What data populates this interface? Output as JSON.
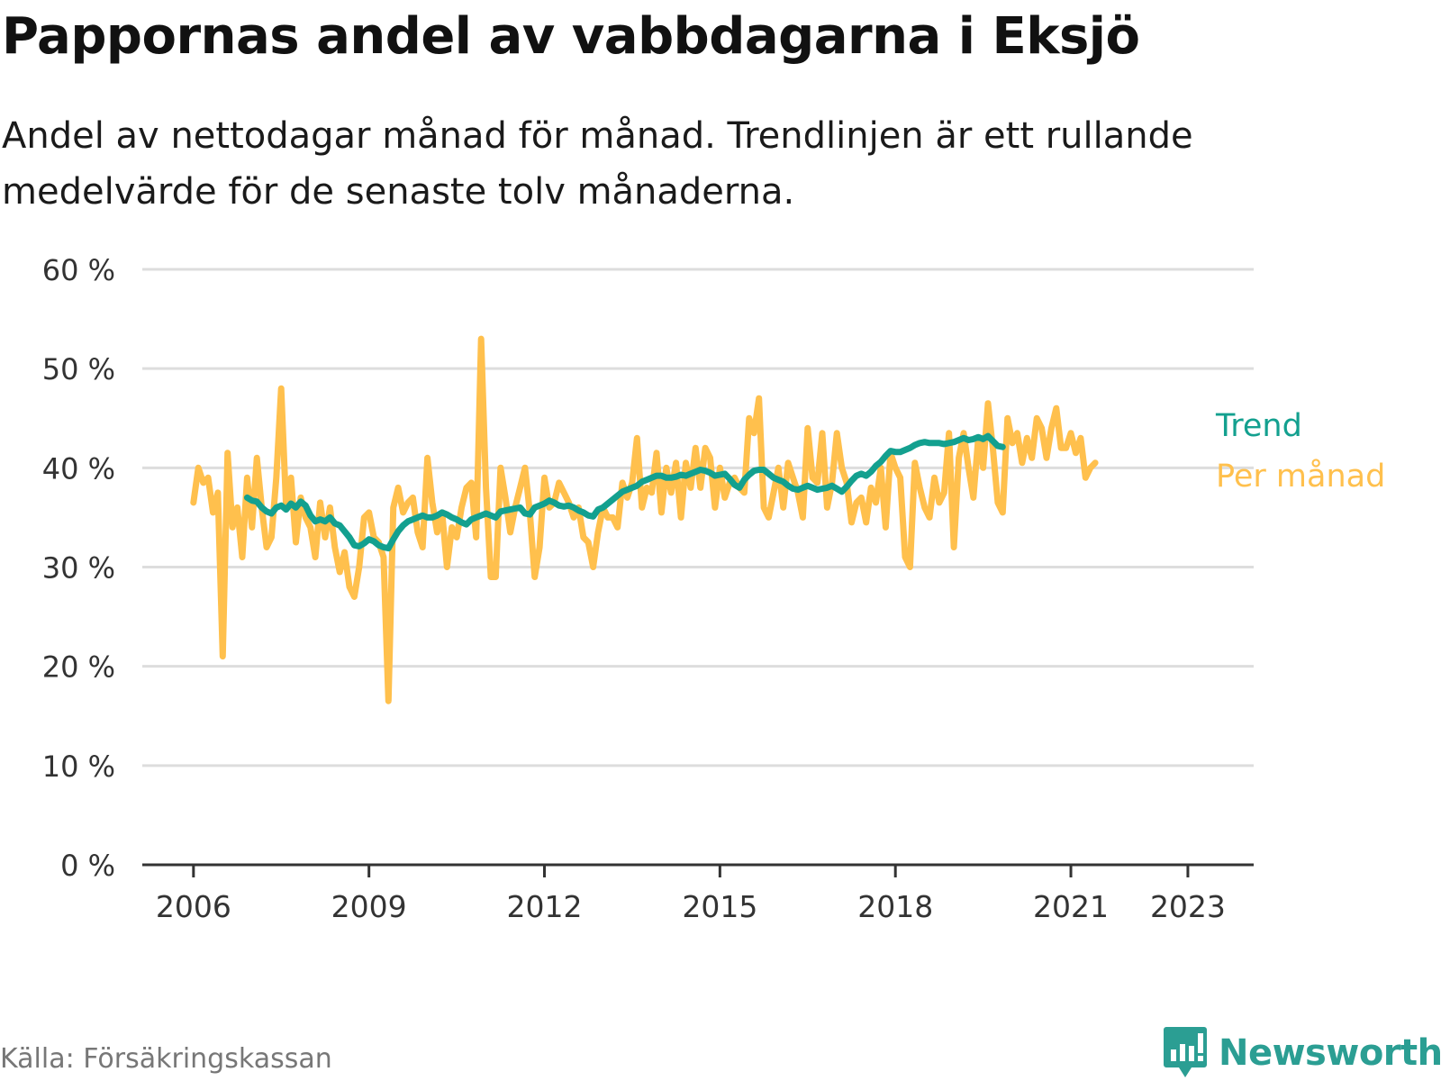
{
  "title": "Pappornas andel av vabbdagarna i Eksjö",
  "subtitle": "Andel av nettodagar månad för månad. Trendlinjen är ett rullande medelvärde för de senaste tolv månaderna.",
  "source": "Källa: Försäkringskassan",
  "logo_text": "Newsworthy",
  "colors": {
    "monthly": "#ffc04d",
    "trend": "#13a08f",
    "grid": "#dddddd",
    "axis": "#333333",
    "logo": "#2b9e93"
  },
  "chart_data": {
    "type": "line",
    "x_unit": "year (decimal, month resolution)",
    "x_ticks": [
      2006,
      2009,
      2012,
      2015,
      2018,
      2021,
      2023
    ],
    "xlim": [
      2005.125,
      2024.125
    ],
    "ylim": [
      0,
      60
    ],
    "y_ticks": [
      0,
      10,
      20,
      30,
      40,
      50,
      60
    ],
    "y_tick_labels": [
      "0 %",
      "10 %",
      "20 %",
      "30 %",
      "40 %",
      "50 %",
      "60 %"
    ],
    "grid": true,
    "legend": "right end of series",
    "series": [
      {
        "name": "Per månad",
        "x_start": 2006.0,
        "step": 0.0833333,
        "values": [
          36.5,
          40.0,
          38.5,
          39.0,
          35.5,
          37.5,
          21.0,
          41.5,
          34.0,
          36.0,
          31.0,
          39.0,
          34.0,
          41.0,
          36.0,
          32.0,
          33.0,
          39.0,
          48.0,
          36.0,
          39.0,
          32.5,
          37.0,
          35.0,
          34.0,
          31.0,
          36.5,
          33.0,
          36.0,
          32.0,
          29.5,
          31.5,
          28.0,
          27.0,
          30.0,
          35.0,
          35.5,
          33.0,
          32.5,
          31.0,
          16.5,
          36.0,
          38.0,
          35.5,
          36.5,
          37.0,
          33.5,
          32.0,
          41.0,
          36.5,
          33.5,
          35.5,
          30.0,
          34.0,
          33.0,
          36.0,
          38.0,
          38.5,
          33.0,
          53.0,
          38.0,
          29.0,
          29.0,
          40.0,
          37.0,
          33.5,
          36.0,
          38.0,
          40.0,
          35.5,
          29.0,
          32.0,
          39.0,
          36.0,
          36.5,
          38.5,
          37.5,
          36.5,
          35.0,
          36.0,
          33.0,
          32.5,
          30.0,
          33.5,
          36.0,
          35.0,
          35.0,
          34.0,
          38.5,
          37.0,
          38.5,
          43.0,
          36.0,
          38.0,
          37.5,
          41.5,
          35.5,
          40.0,
          37.5,
          40.5,
          35.0,
          40.5,
          38.0,
          42.0,
          38.0,
          42.0,
          41.0,
          36.0,
          40.0,
          37.0,
          38.5,
          39.0,
          38.0,
          37.5,
          45.0,
          43.5,
          47.0,
          36.0,
          35.0,
          37.5,
          40.0,
          36.0,
          40.5,
          39.0,
          37.5,
          35.0,
          44.0,
          39.0,
          38.5,
          43.5,
          36.0,
          38.5,
          43.5,
          40.0,
          38.5,
          34.5,
          36.5,
          37.0,
          34.5,
          38.0,
          36.5,
          40.0,
          34.0,
          41.5,
          40.0,
          39.0,
          31.0,
          30.0,
          40.5,
          38.0,
          36.0,
          35.0,
          39.0,
          36.5,
          37.5,
          43.5,
          32.0,
          41.0,
          43.5,
          40.0,
          37.0,
          43.0,
          40.0,
          46.5,
          42.0,
          36.5,
          35.5,
          45.0,
          42.5,
          43.5,
          40.5,
          43.0,
          41.0,
          45.0,
          44.0,
          41.0,
          44.0,
          46.0,
          42.0,
          42.0,
          43.5,
          41.5,
          43.0,
          39.0,
          40.0,
          40.5
        ]
      },
      {
        "name": "Trend",
        "x_start": 2006.9167,
        "step": 0.0833333,
        "values": [
          37.0,
          36.7,
          36.6,
          36.0,
          35.6,
          35.4,
          36.0,
          36.2,
          35.8,
          36.4,
          36.0,
          36.6,
          36.2,
          35.2,
          34.6,
          34.8,
          34.6,
          35.0,
          34.4,
          34.2,
          33.6,
          33.0,
          32.2,
          32.1,
          32.4,
          32.8,
          32.6,
          32.2,
          32.0,
          31.9,
          32.8,
          33.6,
          34.2,
          34.6,
          34.8,
          35.0,
          35.2,
          35.0,
          35.0,
          35.2,
          35.5,
          35.3,
          35.0,
          34.8,
          34.5,
          34.3,
          34.8,
          35.0,
          35.2,
          35.4,
          35.2,
          35.0,
          35.6,
          35.7,
          35.8,
          35.9,
          36.0,
          35.4,
          35.3,
          36.0,
          36.2,
          36.4,
          36.7,
          36.5,
          36.2,
          36.1,
          36.2,
          36.0,
          35.7,
          35.5,
          35.2,
          35.1,
          35.8,
          36.0,
          36.4,
          36.8,
          37.2,
          37.6,
          37.8,
          38.0,
          38.2,
          38.6,
          38.8,
          39.0,
          39.2,
          39.2,
          39.0,
          39.0,
          39.1,
          39.3,
          39.2,
          39.4,
          39.6,
          39.8,
          39.7,
          39.5,
          39.2,
          39.3,
          39.4,
          38.9,
          38.3,
          38.0,
          38.8,
          39.3,
          39.7,
          39.8,
          39.8,
          39.4,
          39.0,
          38.8,
          38.6,
          38.2,
          37.9,
          37.8,
          38.0,
          38.2,
          38.0,
          37.8,
          37.9,
          38.0,
          38.2,
          37.9,
          37.6,
          38.1,
          38.7,
          39.2,
          39.4,
          39.2,
          39.6,
          40.2,
          40.6,
          41.2,
          41.7,
          41.6,
          41.6,
          41.8,
          42.0,
          42.3,
          42.5,
          42.6,
          42.5,
          42.5,
          42.5,
          42.4,
          42.5,
          42.6,
          42.8,
          43.0,
          42.8,
          42.9,
          43.1,
          42.9,
          43.2,
          42.7,
          42.2,
          42.1
        ]
      }
    ]
  }
}
